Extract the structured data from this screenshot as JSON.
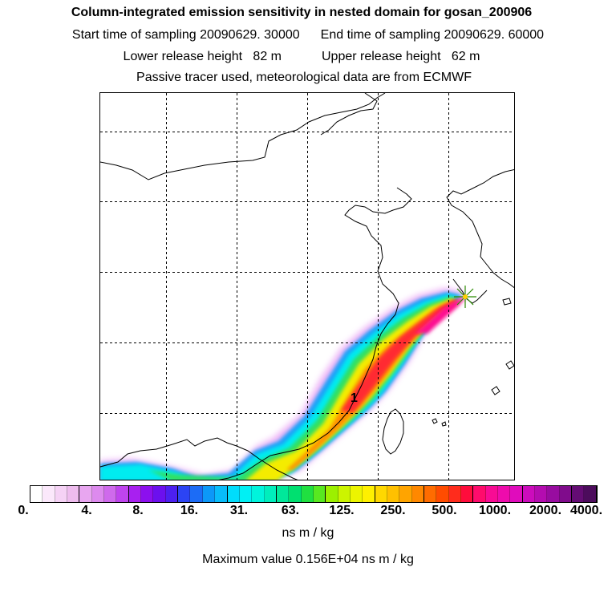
{
  "header": {
    "title": "Column-integrated emission sensitivity in nested domain for gosan_200906",
    "start_label": "Start time of sampling 20090629. 30000",
    "end_label": "End time of sampling 20090629. 60000",
    "lower_label": "Lower release height   82 m",
    "upper_label": "Upper release height   62 m",
    "info_line": "Passive tracer used, meteorological data are from ECMWF"
  },
  "map": {
    "receptor_marker": "star-icon",
    "cluster_label": "1"
  },
  "legend": {
    "ticks": [
      "0.",
      "4.",
      "8.",
      "16.",
      "31.",
      "63.",
      "125.",
      "250.",
      "500.",
      "1000.",
      "2000.",
      "4000."
    ],
    "unit": "ns m / kg",
    "max_value": "Maximum value  0.156E+04 ns m / kg",
    "colors": [
      "#ffffff",
      "#fbe8fb",
      "#f5d2f5",
      "#eebcee",
      "#e8a6f0",
      "#dd8aee",
      "#cf6aec",
      "#bf44ee",
      "#a820f0",
      "#8c10ee",
      "#6c10ee",
      "#4c20f0",
      "#2c44f4",
      "#1c6cf6",
      "#0c98f8",
      "#08bcfa",
      "#00dcfc",
      "#00f0f4",
      "#00f4dc",
      "#00eebc",
      "#00e89a",
      "#00e070",
      "#20e040",
      "#58e820",
      "#9cf000",
      "#ccf400",
      "#ecf400",
      "#fff000",
      "#ffd800",
      "#ffc000",
      "#ffa400",
      "#ff8800",
      "#ff6c00",
      "#ff4c00",
      "#ff2c1c",
      "#ff0c3c",
      "#ff0c6c",
      "#f80c94",
      "#ee0cac",
      "#e00cbc",
      "#cc0cbc",
      "#b40cb0",
      "#980ca0",
      "#800c8c",
      "#640c74",
      "#4c0c5c"
    ]
  }
}
